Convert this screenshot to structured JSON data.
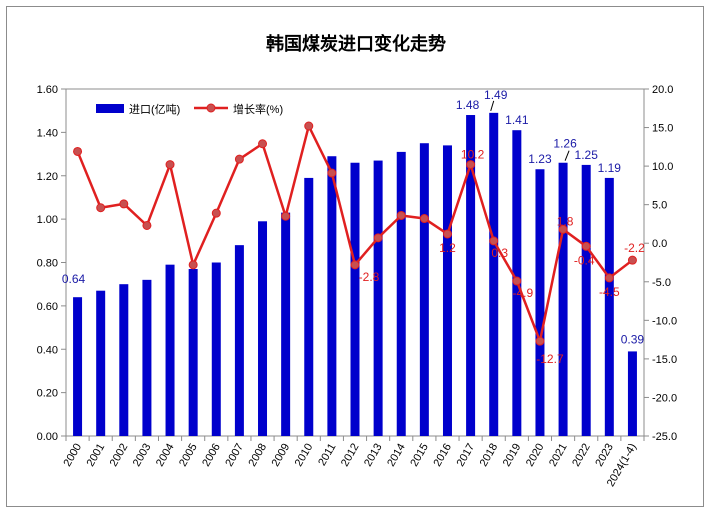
{
  "chart_data": {
    "type": "bar+line",
    "title": "韩国煤炭进口变化走势",
    "categories": [
      "2000",
      "2001",
      "2002",
      "2003",
      "2004",
      "2005",
      "2006",
      "2007",
      "2008",
      "2009",
      "2010",
      "2011",
      "2012",
      "2013",
      "2014",
      "2015",
      "2016",
      "2017",
      "2018",
      "2019",
      "2020",
      "2021",
      "2022",
      "2023",
      "2024(1-4)"
    ],
    "series": [
      {
        "name": "进口(亿吨)",
        "kind": "bar",
        "axis": "left",
        "color": "#0000cc",
        "values": [
          0.64,
          0.67,
          0.7,
          0.72,
          0.79,
          0.77,
          0.8,
          0.88,
          0.99,
          1.03,
          1.19,
          1.29,
          1.26,
          1.27,
          1.31,
          1.35,
          1.34,
          1.48,
          1.49,
          1.41,
          1.23,
          1.26,
          1.25,
          1.19,
          0.39
        ],
        "labels": [
          {
            "index": 0,
            "text": "0.64"
          },
          {
            "index": 17,
            "text": "1.48"
          },
          {
            "index": 18,
            "text": "1.49"
          },
          {
            "index": 19,
            "text": "1.41"
          },
          {
            "index": 20,
            "text": "1.23"
          },
          {
            "index": 21,
            "text": "1.26"
          },
          {
            "index": 22,
            "text": "1.25"
          },
          {
            "index": 23,
            "text": "1.19"
          },
          {
            "index": 24,
            "text": "0.39"
          }
        ]
      },
      {
        "name": "增长率(%)",
        "kind": "line",
        "axis": "right",
        "color": "#e02020",
        "values": [
          11.9,
          4.6,
          5.1,
          2.3,
          10.2,
          -2.8,
          3.9,
          10.9,
          12.9,
          3.5,
          15.2,
          9.1,
          -2.8,
          0.7,
          3.6,
          3.2,
          1.2,
          10.2,
          0.3,
          -4.9,
          -12.7,
          1.8,
          -0.4,
          -4.5,
          -2.2
        ],
        "labels": [
          {
            "index": 12,
            "text": "-2.8"
          },
          {
            "index": 16,
            "text": "1.2"
          },
          {
            "index": 17,
            "text": "10.2"
          },
          {
            "index": 18,
            "text": "0.3"
          },
          {
            "index": 19,
            "text": "-4.9"
          },
          {
            "index": 20,
            "text": "-12.7"
          },
          {
            "index": 21,
            "text": "1.8"
          },
          {
            "index": 22,
            "text": "-0.4"
          },
          {
            "index": 23,
            "text": "-4.5"
          },
          {
            "index": 24,
            "text": "-2.2"
          }
        ]
      }
    ],
    "y_left": {
      "min": 0,
      "max": 1.6,
      "ticks": [
        "0.00",
        "0.20",
        "0.40",
        "0.60",
        "0.80",
        "1.00",
        "1.20",
        "1.40",
        "1.60"
      ]
    },
    "y_right": {
      "min": -25,
      "max": 20,
      "ticks": [
        "-25.0",
        "-20.0",
        "-15.0",
        "-10.0",
        "-5.0",
        "0.0",
        "5.0",
        "10.0",
        "15.0",
        "20.0"
      ]
    },
    "grid": false,
    "legend_position": "top-left"
  }
}
